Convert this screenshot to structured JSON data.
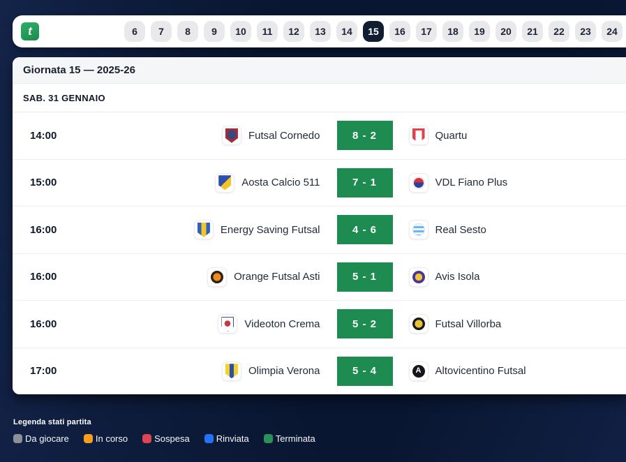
{
  "topbar": {
    "logo_glyph": "t",
    "rounds": [
      "6",
      "7",
      "8",
      "9",
      "10",
      "11",
      "12",
      "13",
      "14",
      "15",
      "16",
      "17",
      "18",
      "19",
      "20",
      "21",
      "22",
      "23",
      "24"
    ],
    "selected_round": "15"
  },
  "panel": {
    "title": "Giornata 15 — 2025-26",
    "date_header": "SAB. 31 GENNAIO",
    "matches": [
      {
        "time": "14:00",
        "home": "Futsal Cornedo",
        "home_logo": "cornedo",
        "score": "8 - 2",
        "away": "Quartu",
        "away_logo": "quartu",
        "status": "terminata"
      },
      {
        "time": "15:00",
        "home": "Aosta Calcio 511",
        "home_logo": "aosta",
        "score": "7 - 1",
        "away": "VDL Fiano Plus",
        "away_logo": "vdl-fiano",
        "status": "terminata"
      },
      {
        "time": "16:00",
        "home": "Energy Saving Futsal",
        "home_logo": "energy-saving",
        "score": "4 - 6",
        "away": "Real Sesto",
        "away_logo": "real-sesto",
        "status": "terminata"
      },
      {
        "time": "16:00",
        "home": "Orange Futsal Asti",
        "home_logo": "orange-asti",
        "score": "5 - 1",
        "away": "Avis Isola",
        "away_logo": "avis-isola",
        "status": "terminata"
      },
      {
        "time": "16:00",
        "home": "Videoton Crema",
        "home_logo": "videoton",
        "score": "5 - 2",
        "away": "Futsal Villorba",
        "away_logo": "villorba",
        "status": "terminata"
      },
      {
        "time": "17:00",
        "home": "Olimpia Verona",
        "home_logo": "olimpia",
        "score": "5 - 4",
        "away": "Altovicentino Futsal",
        "away_logo": "altovicentino",
        "status": "terminata"
      }
    ],
    "score_color": "#1e8b50"
  },
  "logos": {
    "cornedo": {
      "type": "shield"
    },
    "quartu": {
      "type": "shield"
    },
    "aosta": {
      "type": "shield"
    },
    "vdl-fiano": {
      "type": "circle"
    },
    "energy-saving": {
      "type": "shield"
    },
    "real-sesto": {
      "type": "circle"
    },
    "orange-asti": {
      "type": "circle"
    },
    "avis-isola": {
      "type": "circle"
    },
    "videoton": {
      "type": "shield"
    },
    "villorba": {
      "type": "circle"
    },
    "olimpia": {
      "type": "shield"
    },
    "altovicentino": {
      "type": "circle",
      "letter": "A"
    }
  },
  "legend": {
    "title": "Legenda stati partita",
    "items": [
      {
        "label": "Da giocare",
        "color": "#8a9099"
      },
      {
        "label": "In corso",
        "color": "#f99d1c"
      },
      {
        "label": "Sospesa",
        "color": "#dd4455"
      },
      {
        "label": "Rinviata",
        "color": "#2472f5"
      },
      {
        "label": "Terminata",
        "color": "#2a9257"
      }
    ]
  }
}
